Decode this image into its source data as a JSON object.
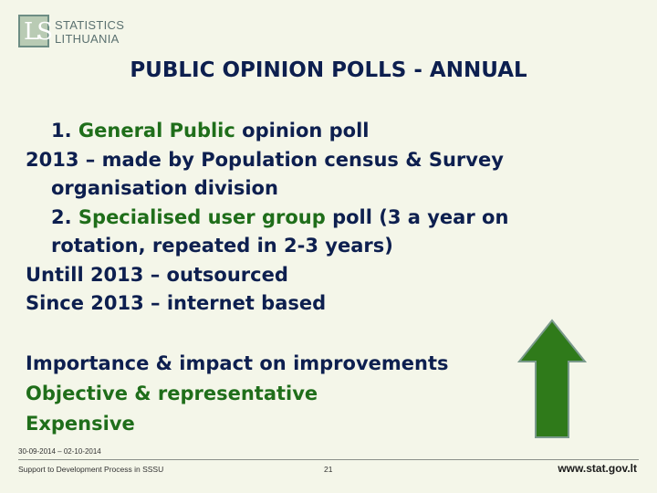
{
  "logo": {
    "mark": "LS",
    "line1": "STATISTICS",
    "line2": "LITHUANIA"
  },
  "title": "PUBLIC OPINION POLLS - ANNUAL",
  "body": {
    "l1_num": "1. ",
    "l1_green": "General Public",
    "l1_rest": " opinion poll",
    "l2": "2013 – made by Population census & Survey",
    "l3": "organisation division",
    "l4_num": "2. ",
    "l4_green": "Specialised user group",
    "l4_rest": " poll (3 a year on",
    "l5": "rotation, repeated in 2-3 years)",
    "l6": "Untill 2013  – outsourced",
    "l7": "Since 2013 – internet based"
  },
  "importance": {
    "l1": "Importance & impact on improvements",
    "l2": "Objective & representative",
    "l3": "Expensive"
  },
  "arrow": {
    "icon": "up-arrow-icon",
    "fill": "#2f7a1a",
    "stroke": "#7a9a8c"
  },
  "footer": {
    "date": "30-09-2014 – 02-10-2014",
    "left": "Support to Development Process in SSSU",
    "page": "21",
    "url": "www.stat.gov.lt"
  }
}
